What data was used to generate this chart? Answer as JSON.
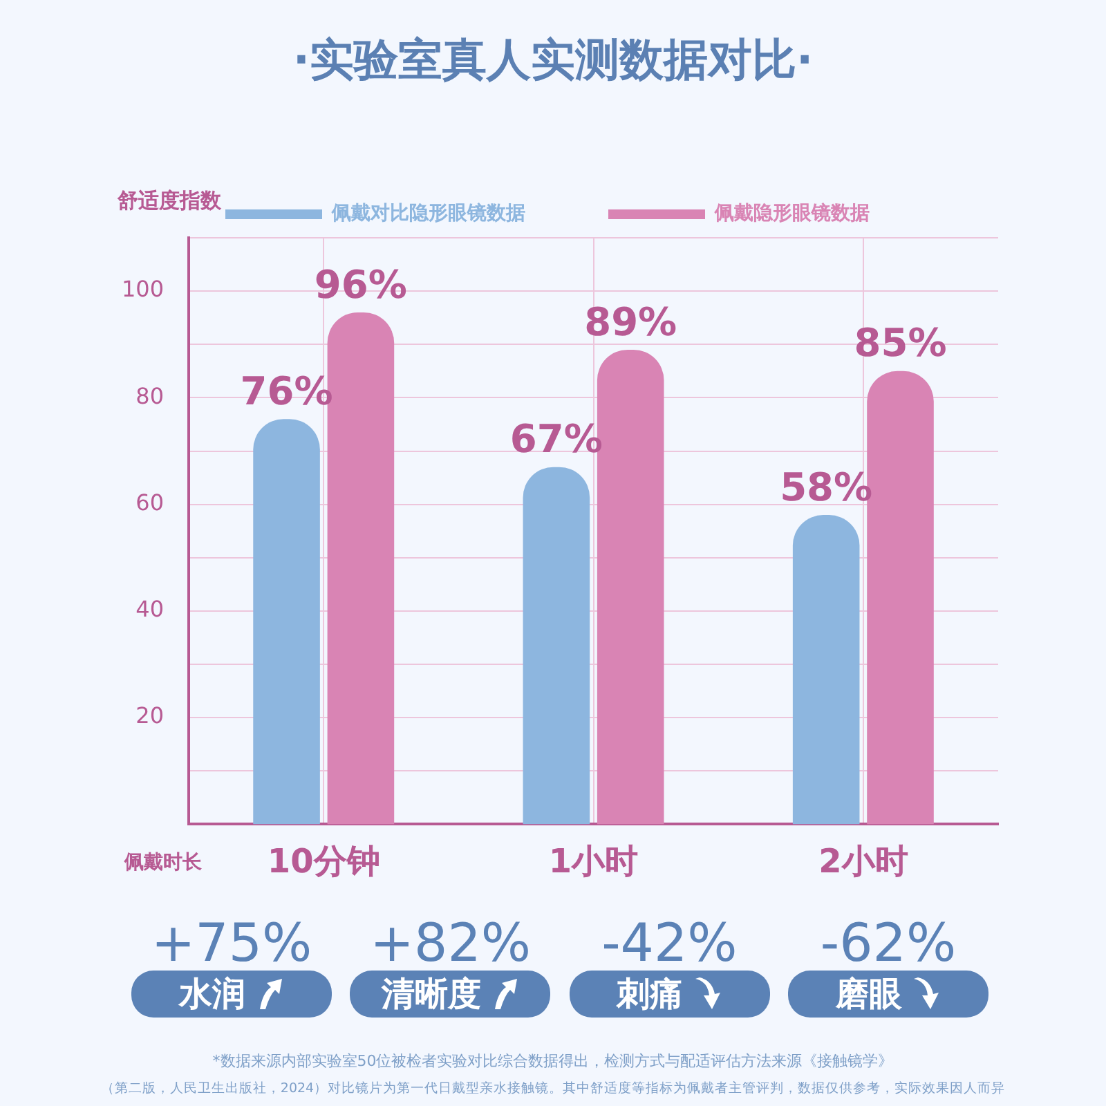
{
  "chart_data": {
    "type": "bar",
    "title": "·实验室真人实测数据对比·",
    "xlabel": "佩戴时长",
    "ylabel": "舒适度指数",
    "categories": [
      "10分钟",
      "1小时",
      "2小时"
    ],
    "series": [
      {
        "name": "佩戴对比隐形眼镜数据",
        "color": "#8db6df",
        "values": [
          76,
          67,
          58
        ],
        "value_labels": [
          "76%",
          "67%",
          "58%"
        ]
      },
      {
        "name": "佩戴隐形眼镜数据",
        "color": "#d984b4",
        "values": [
          96,
          89,
          85
        ],
        "value_labels": [
          "96%",
          "89%",
          "85%"
        ]
      }
    ],
    "ylim": [
      0,
      110
    ],
    "yticks": [
      {
        "value": 10,
        "label": null
      },
      20,
      {
        "value": 30,
        "label": null
      },
      40,
      {
        "value": 50,
        "label": null
      },
      60,
      {
        "value": 70,
        "label": null
      },
      80,
      {
        "value": 90,
        "label": null
      },
      100,
      {
        "value": 110,
        "label": null
      }
    ],
    "grid": true,
    "legend": "top",
    "annotations": [
      "+75%",
      "水润",
      "+82%",
      "清晰度",
      "-42%",
      "刺痛",
      "-62%",
      "磨眼",
      "*数据来源内部实验室50位被检者实验对比综合数据得出，检测方式与配适评估方法来源《接触镜学》",
      "（第二版，人民卫生出版社，2024）对比镜片为第一代日戴型亲水接触镜。其中舒适度等指标为佩戴者主管评判，数据仅供参考，实际效果因人而异"
    ]
  }
}
